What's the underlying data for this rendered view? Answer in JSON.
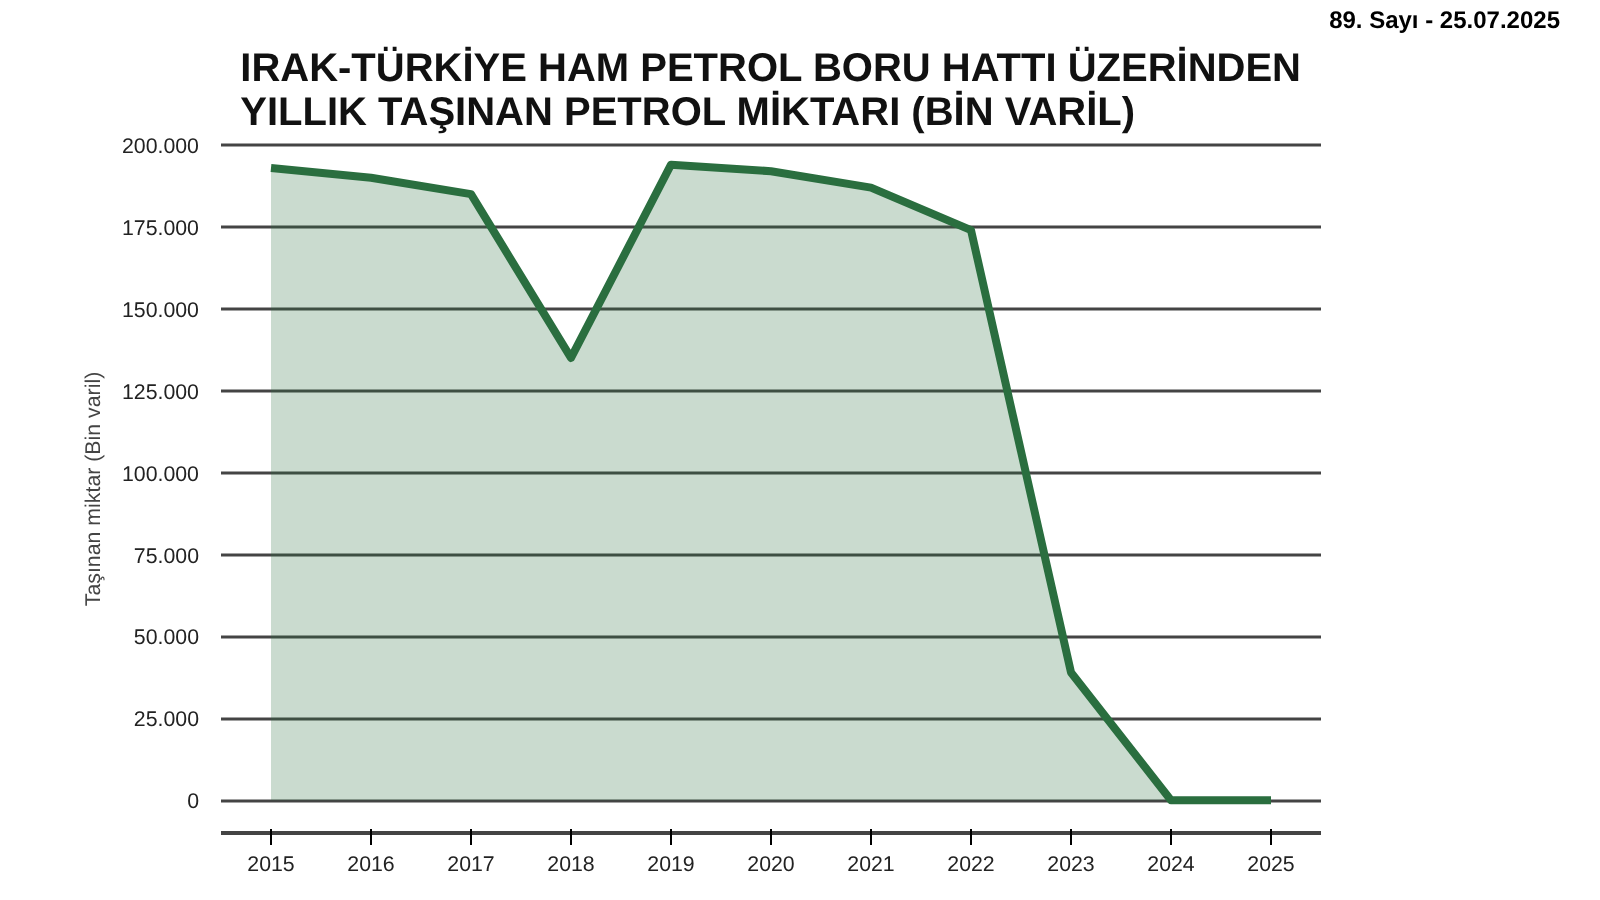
{
  "chart_data": {
    "type": "area",
    "title": "IRAK-TÜRKİYE HAM PETROL BORU HATTI ÜZERİNDEN\nYILLIK TAŞINAN PETROL MİKTARI (BİN VARİL)",
    "ylabel": "Taşınan miktar (Bin varil)",
    "annotations": [
      "89. Sayı - 25.07.2025"
    ],
    "x": [
      2015,
      2016,
      2017,
      2018,
      2019,
      2020,
      2021,
      2022,
      2023,
      2024,
      2025
    ],
    "series": [
      {
        "color": "#2a6e3f",
        "values": [
          193000,
          190000,
          185000,
          135000,
          194000,
          192000,
          187000,
          174000,
          39000,
          0,
          0
        ]
      }
    ],
    "xlim": [
      2014.5,
      2025.5
    ],
    "xticks": [
      2015,
      2016,
      2017,
      2018,
      2019,
      2020,
      2021,
      2022,
      2023,
      2024,
      2025
    ],
    "ylim": [
      -10000,
      200000
    ],
    "yticks": [
      {
        "value": 0,
        "label": "0"
      },
      {
        "value": 25000,
        "label": "25.000"
      },
      {
        "value": 50000,
        "label": "50.000"
      },
      {
        "value": 75000,
        "label": "75.000"
      },
      {
        "value": 100000,
        "label": "100.000"
      },
      {
        "value": 125000,
        "label": "125.000"
      },
      {
        "value": 150000,
        "label": "150.000"
      },
      {
        "value": 175000,
        "label": "175.000"
      },
      {
        "value": 200000,
        "label": "200.000"
      }
    ],
    "grid": "y"
  }
}
